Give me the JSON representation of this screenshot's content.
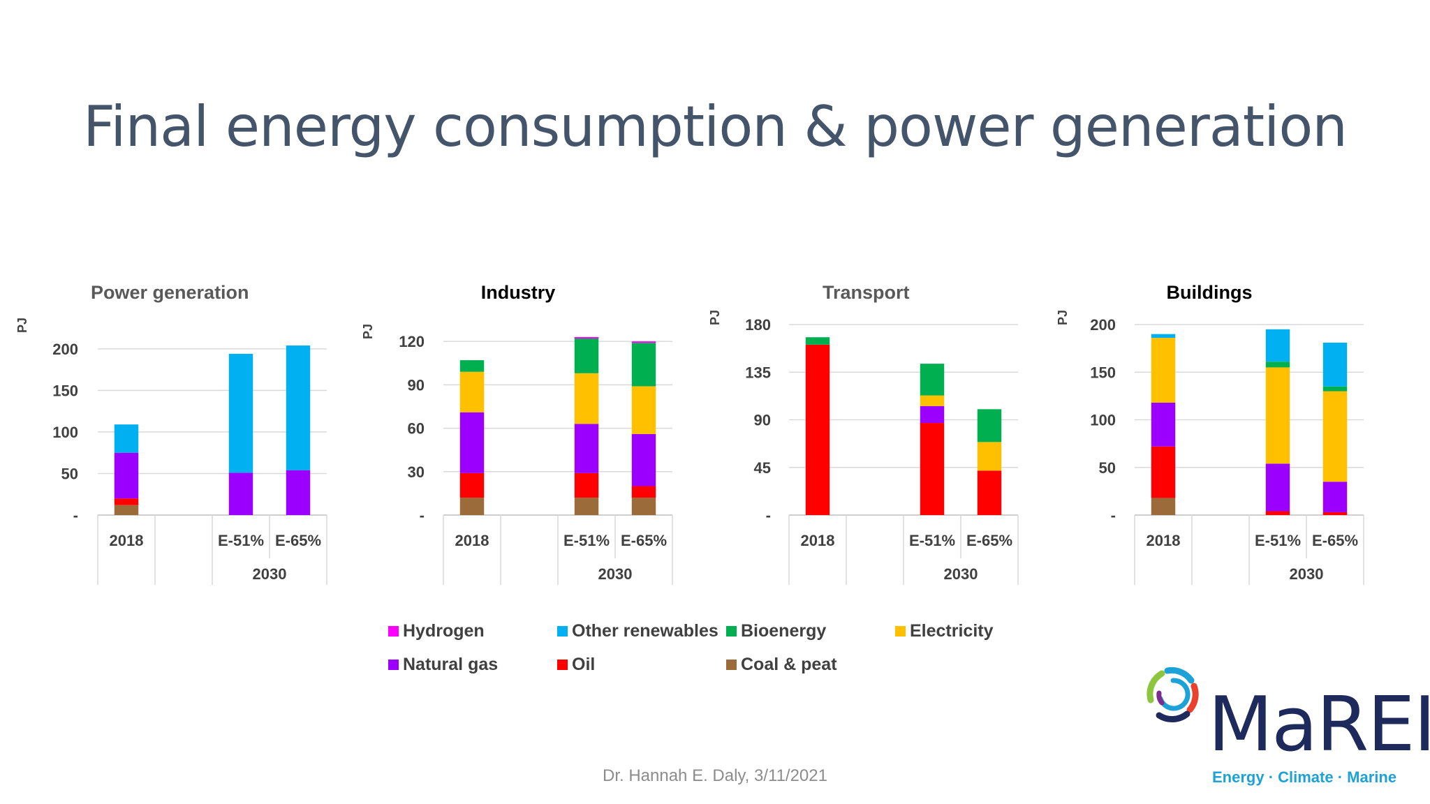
{
  "slide": {
    "title": "Final energy consumption & power generation",
    "footer": "Dr. Hannah E. Daly, 3/11/2021"
  },
  "logo": {
    "word": "MaREI",
    "tagline": "Energy · Climate · Marine",
    "colors": [
      "#1f2a5c",
      "#1ca2d6",
      "#8cc63f",
      "#e8412e",
      "#7b2d8e"
    ]
  },
  "colors": {
    "Hydrogen": "#ff00ff",
    "Other renewables": "#00b0f0",
    "Bioenergy": "#00b050",
    "Electricity": "#ffc000",
    "Natural gas": "#9b00ff",
    "Oil": "#ff0000",
    "Coal & peat": "#9c6b3a"
  },
  "legend": {
    "items": [
      "Hydrogen",
      "Other renewables",
      "Bioenergy",
      "Electricity",
      "Natural gas",
      "Oil",
      "Coal & peat"
    ]
  },
  "chart_data": [
    {
      "type": "bar",
      "stacked": true,
      "title": "Power generation",
      "ylabel": "PJ",
      "ylim": [
        0,
        220
      ],
      "yticks": [
        0,
        50,
        100,
        150,
        200
      ],
      "ytick_labels": [
        "-",
        "50",
        "100",
        "150",
        "200"
      ],
      "categories": [
        "2018",
        "",
        "E-51%",
        "E-65%"
      ],
      "groups": [
        {
          "label": "2030",
          "from": 2,
          "to": 3
        }
      ],
      "series": [
        {
          "name": "Coal & peat",
          "values": [
            12,
            0,
            0,
            0
          ]
        },
        {
          "name": "Oil",
          "values": [
            8,
            0,
            0,
            0
          ]
        },
        {
          "name": "Natural gas",
          "values": [
            55,
            0,
            51,
            54
          ]
        },
        {
          "name": "Electricity",
          "values": [
            0,
            0,
            0,
            0
          ]
        },
        {
          "name": "Bioenergy",
          "values": [
            0,
            0,
            0,
            0
          ]
        },
        {
          "name": "Other renewables",
          "values": [
            34,
            0,
            143,
            150
          ]
        },
        {
          "name": "Hydrogen",
          "values": [
            0,
            0,
            0,
            0
          ]
        }
      ]
    },
    {
      "type": "bar",
      "stacked": true,
      "title": "Industry",
      "ylabel": "PJ",
      "ylim": [
        0,
        122
      ],
      "yticks": [
        0,
        30,
        60,
        90,
        120
      ],
      "ytick_labels": [
        "-",
        "30",
        "60",
        "90",
        "120"
      ],
      "categories": [
        "2018",
        "",
        "E-51%",
        "E-65%"
      ],
      "groups": [
        {
          "label": "2030",
          "from": 2,
          "to": 3
        }
      ],
      "series": [
        {
          "name": "Coal & peat",
          "values": [
            12,
            0,
            12,
            12
          ]
        },
        {
          "name": "Oil",
          "values": [
            17,
            0,
            17,
            8
          ]
        },
        {
          "name": "Natural gas",
          "values": [
            42,
            0,
            34,
            36
          ]
        },
        {
          "name": "Electricity",
          "values": [
            28,
            0,
            35,
            33
          ]
        },
        {
          "name": "Bioenergy",
          "values": [
            8,
            0,
            24,
            30
          ]
        },
        {
          "name": "Other renewables",
          "values": [
            0,
            0,
            0,
            0
          ]
        },
        {
          "name": "Hydrogen",
          "values": [
            0,
            0,
            1,
            1
          ]
        }
      ]
    },
    {
      "type": "bar",
      "stacked": true,
      "title": "Transport",
      "ylabel": "PJ",
      "ylim": [
        0,
        180
      ],
      "yticks": [
        0,
        45,
        90,
        135,
        180
      ],
      "ytick_labels": [
        "-",
        "45",
        "90",
        "135",
        "180"
      ],
      "categories": [
        "2018",
        "",
        "E-51%",
        "E-65%"
      ],
      "groups": [
        {
          "label": "2030",
          "from": 2,
          "to": 3
        }
      ],
      "series": [
        {
          "name": "Coal & peat",
          "values": [
            0,
            0,
            0,
            0
          ]
        },
        {
          "name": "Oil",
          "values": [
            161,
            0,
            87,
            42
          ]
        },
        {
          "name": "Natural gas",
          "values": [
            0,
            0,
            16,
            0
          ]
        },
        {
          "name": "Electricity",
          "values": [
            0,
            0,
            10,
            27
          ]
        },
        {
          "name": "Bioenergy",
          "values": [
            7,
            0,
            30,
            31
          ]
        },
        {
          "name": "Other renewables",
          "values": [
            0,
            0,
            0,
            0
          ]
        },
        {
          "name": "Hydrogen",
          "values": [
            0,
            0,
            0,
            0
          ]
        }
      ]
    },
    {
      "type": "bar",
      "stacked": true,
      "title": "Buildings",
      "ylabel": "PJ",
      "ylim": [
        0,
        200
      ],
      "yticks": [
        0,
        50,
        100,
        150,
        200
      ],
      "ytick_labels": [
        "-",
        "50",
        "100",
        "150",
        "200"
      ],
      "categories": [
        "2018",
        "",
        "E-51%",
        "E-65%"
      ],
      "groups": [
        {
          "label": "2030",
          "from": 2,
          "to": 3
        }
      ],
      "series": [
        {
          "name": "Coal & peat",
          "values": [
            18,
            0,
            0,
            0
          ]
        },
        {
          "name": "Oil",
          "values": [
            54,
            0,
            4,
            3
          ]
        },
        {
          "name": "Natural gas",
          "values": [
            46,
            0,
            50,
            32
          ]
        },
        {
          "name": "Electricity",
          "values": [
            68,
            0,
            101,
            95
          ]
        },
        {
          "name": "Bioenergy",
          "values": [
            0,
            0,
            6,
            5
          ]
        },
        {
          "name": "Other renewables",
          "values": [
            4,
            0,
            34,
            46
          ]
        },
        {
          "name": "Hydrogen",
          "values": [
            0,
            0,
            0,
            0
          ]
        }
      ]
    }
  ]
}
